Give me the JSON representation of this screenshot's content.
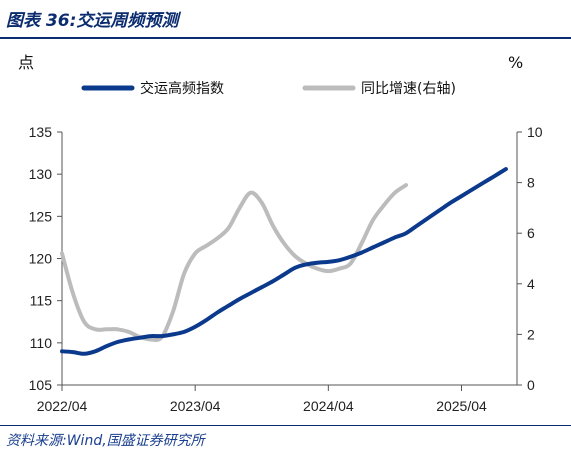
{
  "header": {
    "title": "图表 36:交运周频预测"
  },
  "footer": {
    "source": "资料来源:Wind,国盛证券研究所"
  },
  "colors": {
    "title": "#0b2c6f",
    "primary_series": "#0b3a8c",
    "secondary_series": "#bcbcbc",
    "axis": "#555555"
  },
  "chart_data": {
    "type": "line",
    "left_unit": "点",
    "right_unit": "%",
    "legend_position": "top",
    "grid": false,
    "x_ticks": [
      "2022/04",
      "2023/04",
      "2024/04",
      "2025/04"
    ],
    "x_range": [
      "2022/04",
      "2025/09"
    ],
    "y_left": {
      "ticks": [
        "105",
        "110",
        "115",
        "120",
        "125",
        "130",
        "135"
      ],
      "range": [
        105,
        135
      ]
    },
    "y_right": {
      "ticks": [
        "0",
        "2",
        "4",
        "6",
        "8",
        "10"
      ],
      "range": [
        0,
        10
      ]
    },
    "series": [
      {
        "name": "交运高频指数",
        "axis": "left",
        "points": [
          [
            "2022/04",
            109.0
          ],
          [
            "2022/05",
            108.9
          ],
          [
            "2022/06",
            108.7
          ],
          [
            "2022/07",
            109.0
          ],
          [
            "2022/08",
            109.6
          ],
          [
            "2022/09",
            110.1
          ],
          [
            "2022/10",
            110.4
          ],
          [
            "2022/11",
            110.6
          ],
          [
            "2022/12",
            110.8
          ],
          [
            "2023/01",
            110.8
          ],
          [
            "2023/02",
            111.0
          ],
          [
            "2023/03",
            111.3
          ],
          [
            "2023/04",
            111.9
          ],
          [
            "2023/05",
            112.7
          ],
          [
            "2023/06",
            113.6
          ],
          [
            "2023/07",
            114.4
          ],
          [
            "2023/08",
            115.2
          ],
          [
            "2023/09",
            115.9
          ],
          [
            "2023/10",
            116.6
          ],
          [
            "2023/11",
            117.3
          ],
          [
            "2023/12",
            118.1
          ],
          [
            "2024/01",
            118.9
          ],
          [
            "2024/02",
            119.3
          ],
          [
            "2024/03",
            119.5
          ],
          [
            "2024/04",
            119.6
          ],
          [
            "2024/05",
            119.8
          ],
          [
            "2024/06",
            120.2
          ],
          [
            "2024/07",
            120.7
          ],
          [
            "2024/08",
            121.3
          ],
          [
            "2024/09",
            121.9
          ],
          [
            "2024/10",
            122.5
          ],
          [
            "2024/11",
            123.0
          ],
          [
            "2024/12",
            123.9
          ],
          [
            "2025/01",
            124.8
          ],
          [
            "2025/02",
            125.7
          ],
          [
            "2025/03",
            126.6
          ],
          [
            "2025/04",
            127.4
          ],
          [
            "2025/05",
            128.2
          ],
          [
            "2025/06",
            129.0
          ],
          [
            "2025/07",
            129.8
          ],
          [
            "2025/08",
            130.6
          ]
        ]
      },
      {
        "name": "同比增速(右轴)",
        "axis": "right",
        "points": [
          [
            "2022/04",
            5.2
          ],
          [
            "2022/05",
            3.6
          ],
          [
            "2022/06",
            2.5
          ],
          [
            "2022/07",
            2.2
          ],
          [
            "2022/08",
            2.2
          ],
          [
            "2022/09",
            2.2
          ],
          [
            "2022/10",
            2.1
          ],
          [
            "2022/11",
            1.9
          ],
          [
            "2022/12",
            1.8
          ],
          [
            "2023/01",
            1.9
          ],
          [
            "2023/02",
            2.9
          ],
          [
            "2023/03",
            4.4
          ],
          [
            "2023/04",
            5.2
          ],
          [
            "2023/05",
            5.5
          ],
          [
            "2023/06",
            5.8
          ],
          [
            "2023/07",
            6.2
          ],
          [
            "2023/08",
            7.0
          ],
          [
            "2023/09",
            7.6
          ],
          [
            "2023/10",
            7.2
          ],
          [
            "2023/11",
            6.3
          ],
          [
            "2023/12",
            5.6
          ],
          [
            "2024/01",
            5.1
          ],
          [
            "2024/02",
            4.8
          ],
          [
            "2024/03",
            4.6
          ],
          [
            "2024/04",
            4.5
          ],
          [
            "2024/05",
            4.6
          ],
          [
            "2024/06",
            4.8
          ],
          [
            "2024/07",
            5.6
          ],
          [
            "2024/08",
            6.5
          ],
          [
            "2024/09",
            7.1
          ],
          [
            "2024/10",
            7.6
          ],
          [
            "2024/11",
            7.9
          ]
        ]
      }
    ]
  }
}
